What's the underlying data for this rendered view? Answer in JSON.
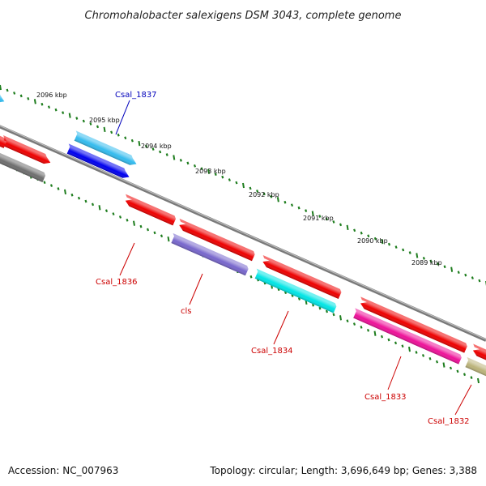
{
  "title": "Chromohalobacter salexigens DSM 3043, complete genome",
  "footer": {
    "accession": "Accession: NC_007963",
    "summary": "Topology: circular; Length: 3,696,649 bp; Genes: 3,388"
  },
  "colors": {
    "backbone": "#7a7a7a",
    "tick": "#1e7d1e",
    "red": "#ee0000",
    "skyblue": "#33bbee",
    "blue": "#0000ee",
    "cyan": "#00e5e5",
    "slate": "#7766cc",
    "magenta": "#ee1199",
    "olive": "#bbb37a",
    "gray": "#6e6e6e",
    "label_red": "#cc0000",
    "label_blue": "#0000bb"
  },
  "scale_labels": [
    "2096 kbp",
    "2095 kbp",
    "2094 kbp",
    "2093 kbp",
    "2092 kbp",
    "2091 kbp",
    "2090 kbp",
    "2089 kbp"
  ],
  "gene_labels": [
    "Csal_1837",
    "Csal_1836",
    "cls",
    "Csal_1834",
    "Csal_1833",
    "Csal_1832"
  ]
}
